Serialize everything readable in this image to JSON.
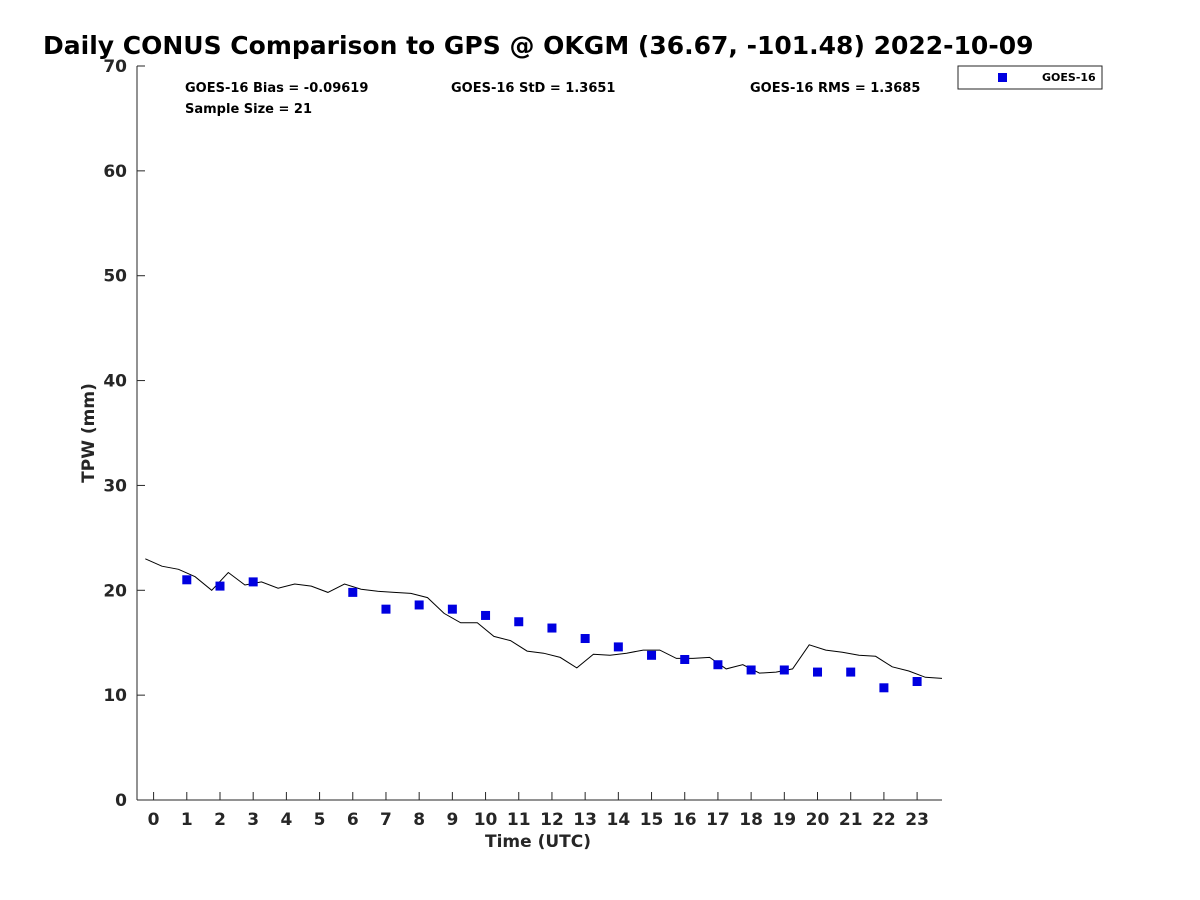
{
  "chart_data": {
    "type": "scatter",
    "title": "Daily CONUS Comparison to GPS @ OKGM (36.67, -101.48) 2022-10-09",
    "xlabel": "Time (UTC)",
    "ylabel": "TPW (mm)",
    "xlim": [
      -0.5,
      23.75
    ],
    "ylim": [
      0,
      70
    ],
    "x_ticks": [
      0,
      1,
      2,
      3,
      4,
      5,
      6,
      7,
      8,
      9,
      10,
      11,
      12,
      13,
      14,
      15,
      16,
      17,
      18,
      19,
      20,
      21,
      22,
      23
    ],
    "y_ticks": [
      0,
      10,
      20,
      30,
      40,
      50,
      60,
      70
    ],
    "grid": false,
    "legend_position": "top-right, outside plot",
    "stats": {
      "bias": "GOES-16 Bias = -0.09619",
      "std": "GOES-16 StD = 1.3651",
      "rms": "GOES-16 RMS = 1.3685",
      "sample": "Sample Size = 21"
    },
    "series": [
      {
        "name": "GOES-16",
        "kind": "scatter",
        "marker": "square",
        "color": "#0000e0",
        "x": [
          1,
          2,
          3,
          6,
          7,
          8,
          9,
          10,
          11,
          12,
          13,
          14,
          15,
          16,
          17,
          18,
          19,
          20,
          21,
          22,
          23
        ],
        "y": [
          21.0,
          20.4,
          20.8,
          19.8,
          18.2,
          18.6,
          18.2,
          17.6,
          17.0,
          16.4,
          15.4,
          14.6,
          13.8,
          13.4,
          12.9,
          12.4,
          12.4,
          12.2,
          12.2,
          10.7,
          11.3
        ]
      },
      {
        "kind": "line",
        "color": "#000000",
        "x": [
          -0.25,
          0.25,
          0.75,
          1.25,
          1.75,
          2.25,
          2.75,
          3.25,
          3.75,
          4.25,
          4.75,
          5.25,
          5.75,
          6.25,
          6.75,
          7.25,
          7.75,
          8.25,
          8.75,
          9.25,
          9.75,
          10.25,
          10.75,
          11.25,
          11.75,
          12.25,
          12.75,
          13.25,
          13.75,
          14.25,
          14.75,
          15.25,
          15.75,
          16.25,
          16.75,
          17.25,
          17.75,
          18.25,
          18.75,
          19.25,
          19.75,
          20.25,
          20.75,
          21.25,
          21.75,
          22.25,
          22.75,
          23.25,
          23.75
        ],
        "y": [
          23.0,
          22.3,
          22.0,
          21.3,
          20.0,
          21.7,
          20.5,
          20.8,
          20.2,
          20.6,
          20.4,
          19.8,
          20.6,
          20.1,
          19.9,
          19.8,
          19.7,
          19.3,
          17.8,
          16.9,
          16.9,
          15.6,
          15.2,
          14.2,
          14.0,
          13.6,
          12.6,
          13.9,
          13.8,
          14.0,
          14.3,
          14.3,
          13.5,
          13.5,
          13.6,
          12.5,
          12.9,
          12.1,
          12.2,
          12.5,
          14.8,
          14.3,
          14.1,
          13.8,
          13.7,
          12.7,
          12.3,
          11.7,
          11.6
        ]
      }
    ]
  }
}
